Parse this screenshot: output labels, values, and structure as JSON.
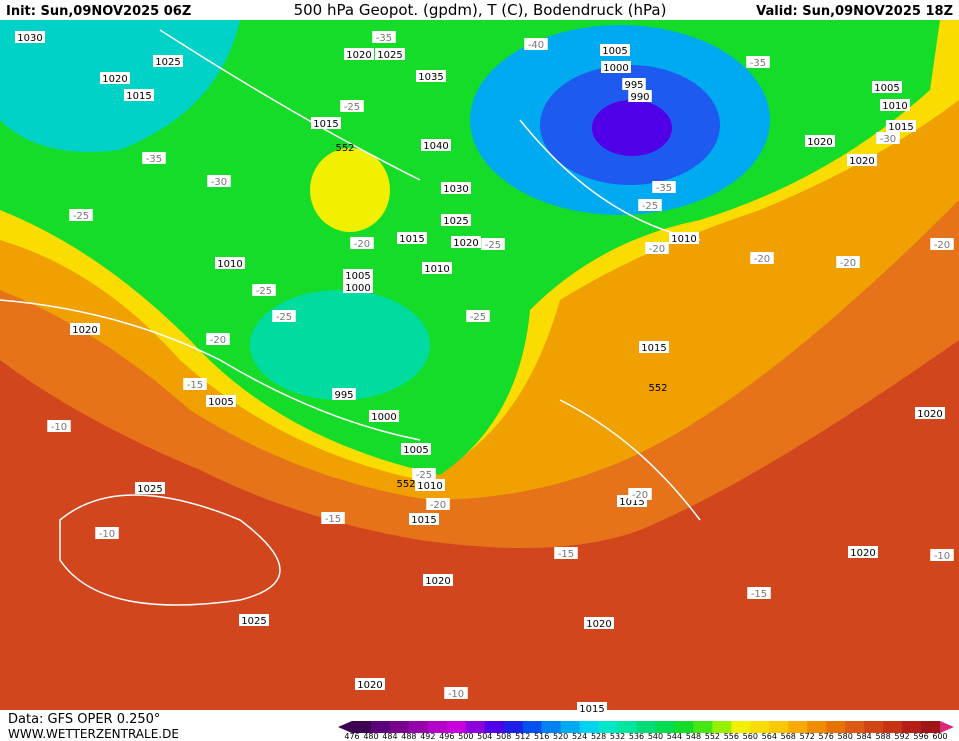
{
  "header": {
    "init": "Init: Sun,09NOV2025 06Z",
    "title": "500 hPa Geopot. (gpdm), T (C), Bodendruck (hPa)",
    "valid": "Valid: Sun,09NOV2025 18Z"
  },
  "footer": {
    "data": "Data: GFS OPER 0.250°",
    "site": "WWW.WETTERZENTRALE.DE"
  },
  "map": {
    "pressure_labels": [
      "1030",
      "1025",
      "1020",
      "1015",
      "1020",
      "1025",
      "1035",
      "1015",
      "1040",
      "1030",
      "1025",
      "1015",
      "1020",
      "1010",
      "1010",
      "1005",
      "1000",
      "1020",
      "1005",
      "995",
      "1000",
      "1005",
      "1010",
      "1015",
      "1025",
      "1020",
      "1025",
      "1020",
      "1015",
      "1015",
      "1020",
      "1015",
      "1020",
      "1020",
      "1005",
      "1000",
      "995",
      "990",
      "1005",
      "1010",
      "1015",
      "1020",
      "1020",
      "1010"
    ],
    "temperature_labels": [
      "-35",
      "-40",
      "-35",
      "-25",
      "-35",
      "-30",
      "-25",
      "-35",
      "-25",
      "-30",
      "-20",
      "-25",
      "-20",
      "-20",
      "-20",
      "-20",
      "-25",
      "-25",
      "-25",
      "-20",
      "-15",
      "-10",
      "-25",
      "-20",
      "-15",
      "-10",
      "-20",
      "-15",
      "-15",
      "-10",
      "-10"
    ],
    "geopotential_labels": [
      "552",
      "552",
      "552"
    ]
  },
  "colorbar": {
    "ticks": [
      476,
      480,
      484,
      488,
      492,
      496,
      500,
      504,
      508,
      512,
      516,
      520,
      524,
      528,
      532,
      536,
      540,
      544,
      548,
      552,
      556,
      560,
      564,
      568,
      572,
      576,
      580,
      584,
      588,
      592,
      596,
      600
    ],
    "colors": [
      "#3c0050",
      "#5a0078",
      "#78008c",
      "#9600aa",
      "#b400c8",
      "#c800dc",
      "#8c00dc",
      "#5000e6",
      "#1e1ee6",
      "#0050f0",
      "#0082f0",
      "#00aaf0",
      "#00d2f0",
      "#00e6c8",
      "#00e6a0",
      "#00dc78",
      "#00dc50",
      "#14dc28",
      "#46e614",
      "#96f000",
      "#f0f000",
      "#fadc00",
      "#fac800",
      "#faaa00",
      "#f08c00",
      "#e67300",
      "#dc5a14",
      "#d24614",
      "#c83214",
      "#b41e14",
      "#a01414",
      "#dc2878"
    ]
  }
}
